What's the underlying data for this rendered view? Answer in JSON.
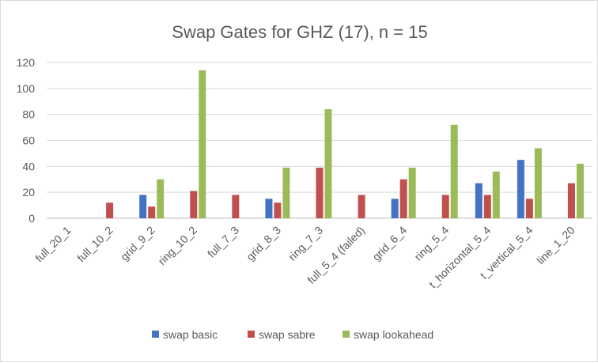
{
  "chart_data": {
    "type": "bar",
    "title": "Swap Gates for GHZ (17), n = 15",
    "xlabel": "",
    "ylabel": "",
    "ylim": [
      0,
      120
    ],
    "yticks": [
      0,
      20,
      40,
      60,
      80,
      100,
      120
    ],
    "grid": true,
    "legend_position": "bottom",
    "categories": [
      "full_20_1",
      "full_10_2",
      "grid_9_2",
      "ring_10_2",
      "full_7_3",
      "grid_8_3",
      "ring_7_3",
      "full_5_4 (failed)",
      "grid_6_4",
      "ring_5_4",
      "t_horizontal_5_4",
      "t_vertical_5_4",
      "line_1_20"
    ],
    "series": [
      {
        "name": "swap basic",
        "color": "#4472c4",
        "values": [
          0,
          0,
          18,
          0,
          0,
          15,
          0,
          0,
          15,
          0,
          27,
          45,
          0
        ]
      },
      {
        "name": "swap sabre",
        "color": "#c0504d",
        "values": [
          0,
          12,
          9,
          21,
          18,
          12,
          39,
          18,
          30,
          18,
          18,
          15,
          27
        ]
      },
      {
        "name": "swap lookahead",
        "color": "#9bbb59",
        "values": [
          0,
          0,
          30,
          114,
          0,
          39,
          84,
          0,
          39,
          72,
          36,
          54,
          42
        ]
      }
    ]
  }
}
